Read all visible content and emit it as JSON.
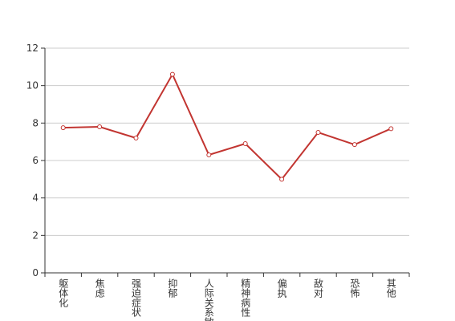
{
  "chart_data": {
    "type": "line",
    "categories": [
      "躯体化",
      "焦虑",
      "强迫症状",
      "抑郁",
      "人际关系敏感",
      "精神病性",
      "偏执",
      "敌对",
      "恐怖",
      "其他"
    ],
    "values": [
      7.75,
      7.8,
      7.2,
      10.6,
      6.3,
      6.9,
      5.0,
      7.5,
      6.85,
      7.7
    ],
    "color": "#c23531",
    "ylim": [
      0,
      12
    ],
    "yticks": [
      0,
      2,
      4,
      6,
      8,
      10,
      12
    ],
    "grid": true
  }
}
